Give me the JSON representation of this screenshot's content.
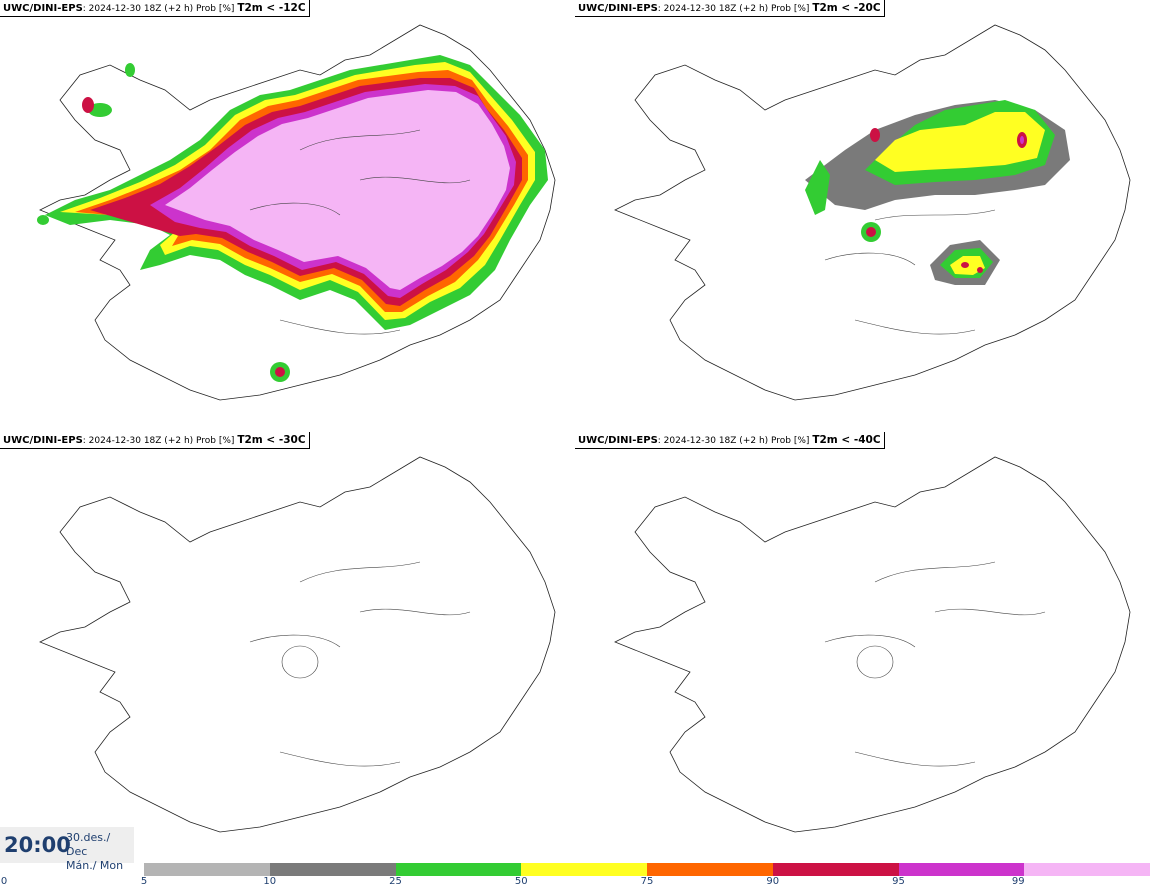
{
  "panels": [
    {
      "model": "UWC/DINI-EPS",
      "run": ": 2024-12-30 18Z (+2 h) Prob [%]",
      "threshold": "T2m < -12C"
    },
    {
      "model": "UWC/DINI-EPS",
      "run": ": 2024-12-30 18Z (+2 h) Prob [%]",
      "threshold": "T2m < -20C"
    },
    {
      "model": "UWC/DINI-EPS",
      "run": ": 2024-12-30 18Z (+2 h) Prob [%]",
      "threshold": "T2m < -30C"
    },
    {
      "model": "UWC/DINI-EPS",
      "run": ": 2024-12-30 18Z (+2 h) Prob [%]",
      "threshold": "T2m < -40C"
    }
  ],
  "valid": {
    "time": "20:00",
    "date_line1": "30.des./ Dec",
    "date_line2": "Mán./ Mon"
  },
  "legend": {
    "ticks": [
      "0",
      "5",
      "10",
      "25",
      "50",
      "75",
      "90",
      "95",
      "99"
    ],
    "colors": [
      "#b4b4b4",
      "#7a7a7a",
      "#33cc33",
      "#ffff22",
      "#ff6600",
      "#cc1144",
      "#cc33cc",
      "#f5b5f5"
    ]
  }
}
